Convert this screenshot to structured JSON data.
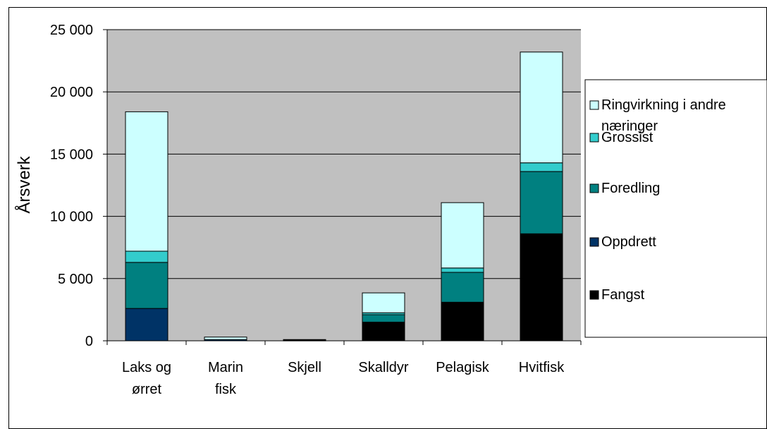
{
  "chart_data": {
    "type": "bar",
    "stacked": true,
    "ylabel": "Årsverk",
    "ylim": [
      0,
      25000
    ],
    "ytick_values": [
      0,
      5000,
      10000,
      15000,
      20000,
      25000
    ],
    "ytick_labels": [
      "0",
      "5 000",
      "10 000",
      "15 000",
      "20 000",
      "25 000"
    ],
    "grid": true,
    "legend_position": "right",
    "categories": [
      {
        "line1": "Laks og",
        "line2": "ørret"
      },
      {
        "line1": "Marin",
        "line2": "fisk"
      },
      {
        "line1": "Skjell",
        "line2": ""
      },
      {
        "line1": "Skalldyr",
        "line2": ""
      },
      {
        "line1": "Pelagisk",
        "line2": ""
      },
      {
        "line1": "Hvitfisk",
        "line2": ""
      }
    ],
    "series": [
      {
        "name": "Fangst",
        "color": "#000000",
        "values": [
          0,
          0,
          0,
          1500,
          3100,
          8600
        ]
      },
      {
        "name": "Oppdrett",
        "color": "#003366",
        "values": [
          2600,
          100,
          50,
          0,
          0,
          0
        ]
      },
      {
        "name": "Foredling",
        "color": "#008080",
        "values": [
          3700,
          0,
          0,
          600,
          2400,
          5000
        ]
      },
      {
        "name": "Grossist",
        "color": "#33CCCC",
        "values": [
          900,
          0,
          0,
          150,
          350,
          700
        ]
      },
      {
        "name": "Ringvirkning i andre næringer",
        "color": "#CCFFFF",
        "values": [
          11200,
          200,
          50,
          1600,
          5250,
          8900
        ]
      }
    ],
    "legend_lines": [
      {
        "series": 4,
        "lines": [
          "Ringvirkning i andre",
          "næringer"
        ]
      },
      {
        "series": 3,
        "lines": [
          "Grossist"
        ]
      },
      {
        "series": 2,
        "lines": [
          "Foredling"
        ]
      },
      {
        "series": 1,
        "lines": [
          "Oppdrett"
        ]
      },
      {
        "series": 0,
        "lines": [
          "Fangst"
        ]
      }
    ],
    "plot_background": "#C0C0C0"
  }
}
